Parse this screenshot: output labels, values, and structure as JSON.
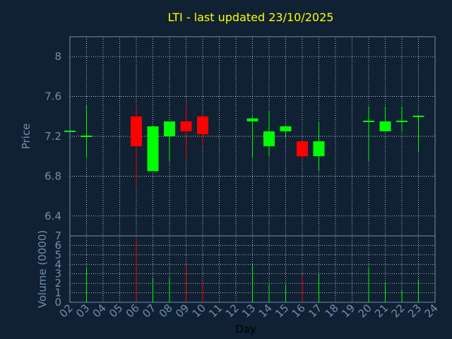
{
  "chart_data": {
    "type": "candlestick",
    "title": "LTI - last updated 23/10/2025",
    "xlabel": "Day",
    "ylabel_price": "Price",
    "ylabel_volume": "Volume (0000)",
    "x_ticks": [
      "02",
      "03",
      "04",
      "05",
      "06",
      "07",
      "08",
      "09",
      "10",
      "11",
      "12",
      "13",
      "14",
      "15",
      "16",
      "17",
      "18",
      "19",
      "20",
      "21",
      "22",
      "23",
      "24"
    ],
    "price_ticks": [
      6.4,
      6.8,
      7.2,
      7.6,
      8
    ],
    "price_ylim": [
      6.2,
      8.2
    ],
    "volume_ticks": [
      0,
      1,
      2,
      3,
      4,
      5,
      6,
      7
    ],
    "volume_ylim": [
      0,
      7
    ],
    "grid": true,
    "colors": {
      "background": "#0f2133",
      "up": "#00ff00",
      "down": "#ff0000",
      "neutral": "#00ff00",
      "title": "#ffff00",
      "axis_text": "#6f8fb0",
      "grid": "#ffffff",
      "frame": "#6f8fb0"
    },
    "candles": [
      {
        "day": "02",
        "open": 7.25,
        "close": 7.25,
        "high": 7.25,
        "low": 7.25,
        "volume": 0
      },
      {
        "day": "03",
        "open": 7.2,
        "close": 7.2,
        "high": 7.52,
        "low": 6.98,
        "volume": 3.7
      },
      {
        "day": "06",
        "open": 7.4,
        "close": 7.1,
        "high": 7.5,
        "low": 6.7,
        "volume": 6.8
      },
      {
        "day": "07",
        "open": 6.85,
        "close": 7.3,
        "high": 7.3,
        "low": 6.85,
        "volume": 2.6
      },
      {
        "day": "08",
        "open": 7.2,
        "close": 7.35,
        "high": 7.35,
        "low": 6.95,
        "volume": 2.6
      },
      {
        "day": "09",
        "open": 7.35,
        "close": 7.25,
        "high": 7.52,
        "low": 6.98,
        "volume": 3.8
      },
      {
        "day": "10",
        "open": 7.4,
        "close": 7.22,
        "high": 7.4,
        "low": 7.1,
        "volume": 2.1
      },
      {
        "day": "13",
        "open": 7.35,
        "close": 7.38,
        "high": 7.4,
        "low": 6.98,
        "volume": 4.0
      },
      {
        "day": "14",
        "open": 7.1,
        "close": 7.25,
        "high": 7.45,
        "low": 7.0,
        "volume": 1.9
      },
      {
        "day": "15",
        "open": 7.25,
        "close": 7.3,
        "high": 7.3,
        "low": 7.2,
        "volume": 1.8
      },
      {
        "day": "16",
        "open": 7.15,
        "close": 7.0,
        "high": 7.15,
        "low": 6.95,
        "volume": 2.9
      },
      {
        "day": "17",
        "open": 7.0,
        "close": 7.15,
        "high": 7.35,
        "low": 6.85,
        "volume": 2.9
      },
      {
        "day": "20",
        "open": 7.35,
        "close": 7.35,
        "high": 7.5,
        "low": 6.95,
        "volume": 3.7
      },
      {
        "day": "21",
        "open": 7.25,
        "close": 7.35,
        "high": 7.5,
        "low": 7.25,
        "volume": 2.0
      },
      {
        "day": "22",
        "open": 7.35,
        "close": 7.35,
        "high": 7.5,
        "low": 7.25,
        "volume": 1.3
      },
      {
        "day": "23",
        "open": 7.4,
        "close": 7.4,
        "high": 7.4,
        "low": 7.05,
        "volume": 2.4
      }
    ]
  }
}
